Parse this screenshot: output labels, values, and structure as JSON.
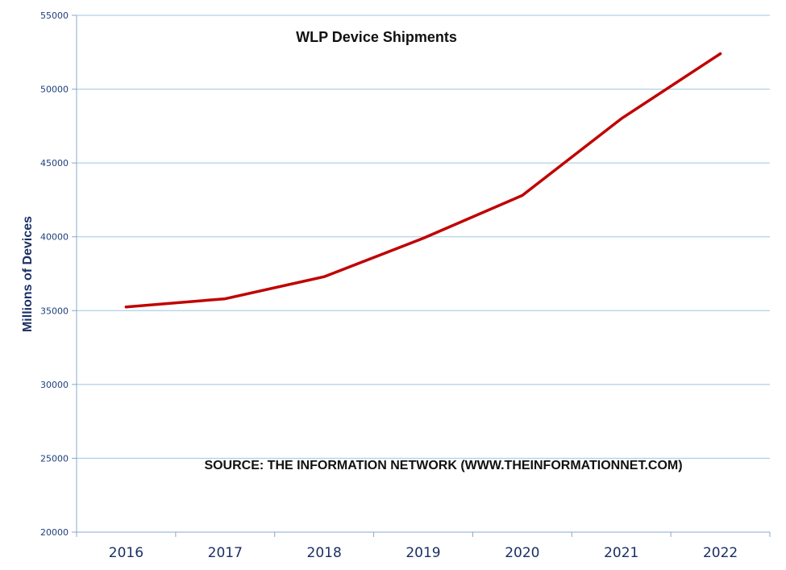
{
  "chart_data": {
    "type": "line",
    "title": "WLP Device Shipments",
    "annotation": "SOURCE: THE INFORMATION NETWORK (WWW.THEINFORMATIONNET.COM)",
    "xlabel": "",
    "ylabel": "Millions of Devices",
    "categories": [
      "2016",
      "2017",
      "2018",
      "2019",
      "2020",
      "2021",
      "2022"
    ],
    "series": [
      {
        "values": [
          35250,
          35800,
          37300,
          39900,
          42800,
          48000,
          52400
        ],
        "color": "#c00000"
      }
    ],
    "ylim": [
      20000,
      55000
    ],
    "yticks": [
      "20000",
      "25000",
      "30000",
      "35000",
      "40000",
      "45000",
      "50000",
      "55000"
    ],
    "grid": true,
    "legend": "none"
  }
}
